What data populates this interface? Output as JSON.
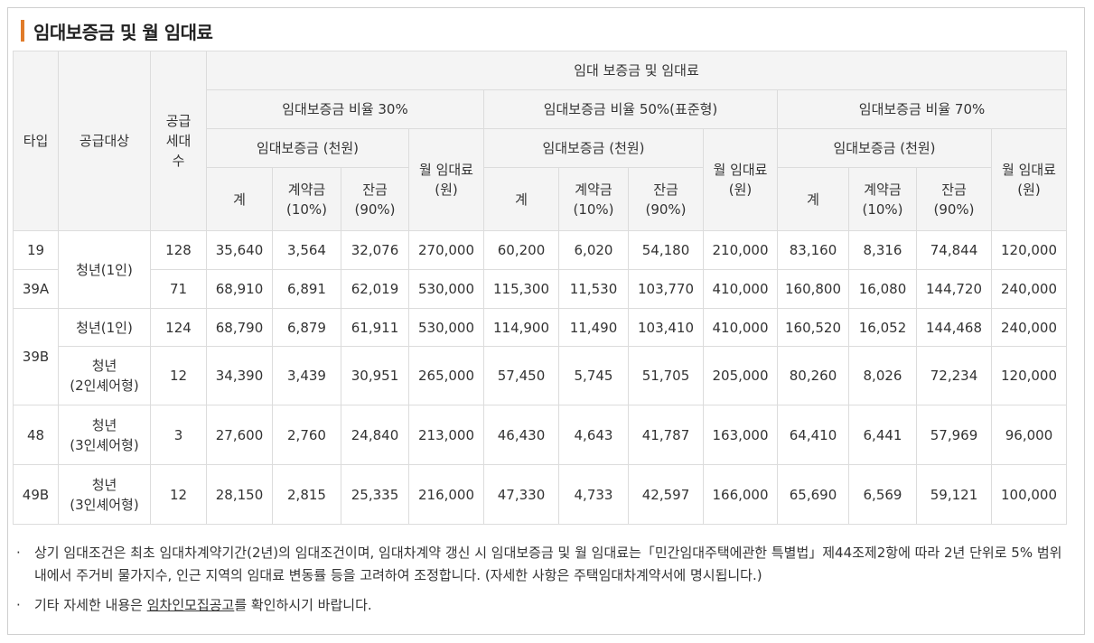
{
  "title": "임대보증금 및 월 임대료",
  "headers": {
    "type": "타입",
    "target": "공급대상",
    "supply_units": "공급세대수",
    "group": "임대 보증금 및 임대료",
    "ratio30": "임대보증금 비율 30%",
    "ratio50": "임대보증금 비율 50%(표준형)",
    "ratio70": "임대보증금 비율 70%",
    "deposit": "임대보증금 (천원)",
    "monthly_rent": "월 임대료",
    "won": "(원)",
    "total": "계",
    "contract": "계약금",
    "contract_pct": "(10%)",
    "balance": "잔금",
    "balance_pct": "(90%)"
  },
  "rows": [
    {
      "type": "19",
      "target": "청년(1인)",
      "units": "128",
      "r30": [
        "35,640",
        "3,564",
        "32,076",
        "270,000"
      ],
      "r50": [
        "60,200",
        "6,020",
        "54,180",
        "210,000"
      ],
      "r70": [
        "83,160",
        "8,316",
        "74,844",
        "120,000"
      ]
    },
    {
      "type": "39A",
      "target": "",
      "units": "71",
      "r30": [
        "68,910",
        "6,891",
        "62,019",
        "530,000"
      ],
      "r50": [
        "115,300",
        "11,530",
        "103,770",
        "410,000"
      ],
      "r70": [
        "160,800",
        "16,080",
        "144,720",
        "240,000"
      ]
    },
    {
      "type": "39B",
      "target": "청년(1인)",
      "units": "124",
      "r30": [
        "68,790",
        "6,879",
        "61,911",
        "530,000"
      ],
      "r50": [
        "114,900",
        "11,490",
        "103,410",
        "410,000"
      ],
      "r70": [
        "160,520",
        "16,052",
        "144,468",
        "240,000"
      ]
    },
    {
      "type": "",
      "target": "청년(2인셰어형)",
      "target_l1": "청년",
      "target_l2": "(2인셰어형)",
      "units": "12",
      "r30": [
        "34,390",
        "3,439",
        "30,951",
        "265,000"
      ],
      "r50": [
        "57,450",
        "5,745",
        "51,705",
        "205,000"
      ],
      "r70": [
        "80,260",
        "8,026",
        "72,234",
        "120,000"
      ]
    },
    {
      "type": "48",
      "target_l1": "청년",
      "target_l2": "(3인셰어형)",
      "units": "3",
      "r30": [
        "27,600",
        "2,760",
        "24,840",
        "213,000"
      ],
      "r50": [
        "46,430",
        "4,643",
        "41,787",
        "163,000"
      ],
      "r70": [
        "64,410",
        "6,441",
        "57,969",
        "96,000"
      ]
    },
    {
      "type": "49B",
      "target_l1": "청년",
      "target_l2": "(3인셰어형)",
      "units": "12",
      "r30": [
        "28,150",
        "2,815",
        "25,335",
        "216,000"
      ],
      "r50": [
        "47,330",
        "4,733",
        "42,597",
        "166,000"
      ],
      "r70": [
        "65,690",
        "6,569",
        "59,121",
        "100,000"
      ]
    }
  ],
  "notes": {
    "bullet": "·",
    "note1": "상기 임대조건은 최초 임대차계약기간(2년)의 임대조건이며, 임대차계약 갱신 시 임대보증금 및 월 임대료는「민간임대주택에관한 특별법」제44조제2항에 따라 2년 단위로 5% 범위 내에서 주거비 물가지수, 인근 지역의 임대료 변동률 등을 고려하여 조정합니다. (자세한 사항은 주택임대차계약서에 명시됩니다.)",
    "note2_prefix": "기타 자세한 내용은 ",
    "note2_link": "임차인모집공고",
    "note2_suffix": "를 확인하시기 바랍니다."
  }
}
